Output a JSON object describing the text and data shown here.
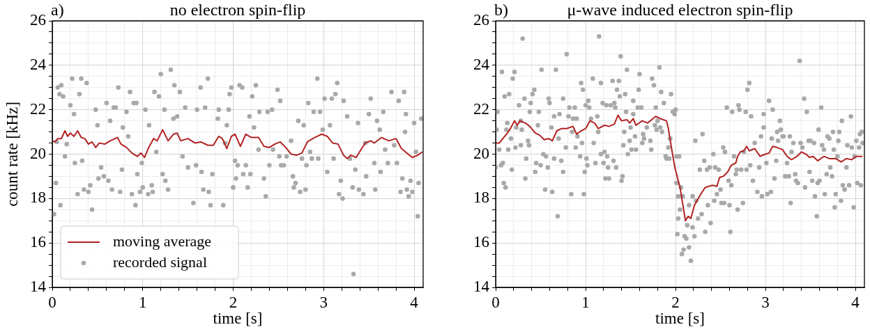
{
  "chart_data": [
    {
      "type": "scatter",
      "title": "no electron spin-flip",
      "annotations": [
        "a)"
      ],
      "xlabel": "time [s]",
      "ylabel": "count rate [kHz]",
      "xlim": [
        0,
        4.1
      ],
      "ylim": [
        14,
        26
      ],
      "xticks": [
        0,
        {
          "value": 0.2,
          "label": null
        },
        {
          "value": 0.4,
          "label": null
        },
        {
          "value": 0.6,
          "label": null
        },
        {
          "value": 0.8,
          "label": null
        },
        1,
        {
          "value": 1.2,
          "label": null
        },
        {
          "value": 1.4,
          "label": null
        },
        {
          "value": 1.6,
          "label": null
        },
        {
          "value": 1.8,
          "label": null
        },
        2,
        {
          "value": 2.2,
          "label": null
        },
        {
          "value": 2.4,
          "label": null
        },
        {
          "value": 2.6,
          "label": null
        },
        {
          "value": 2.8,
          "label": null
        },
        3,
        {
          "value": 3.2,
          "label": null
        },
        {
          "value": 3.4,
          "label": null
        },
        {
          "value": 3.6,
          "label": null
        },
        {
          "value": 3.8,
          "label": null
        },
        4
      ],
      "yticks": [
        14,
        {
          "value": 14.5,
          "label": null
        },
        {
          "value": 15,
          "label": null
        },
        {
          "value": 15.5,
          "label": null
        },
        16,
        {
          "value": 16.5,
          "label": null
        },
        {
          "value": 17,
          "label": null
        },
        {
          "value": 17.5,
          "label": null
        },
        18,
        {
          "value": 18.5,
          "label": null
        },
        {
          "value": 19,
          "label": null
        },
        {
          "value": 19.5,
          "label": null
        },
        20,
        {
          "value": 20.5,
          "label": null
        },
        {
          "value": 21,
          "label": null
        },
        {
          "value": 21.5,
          "label": null
        },
        22,
        {
          "value": 22.5,
          "label": null
        },
        {
          "value": 23,
          "label": null
        },
        {
          "value": 23.5,
          "label": null
        },
        24,
        {
          "value": 24.5,
          "label": null
        },
        {
          "value": 25,
          "label": null
        },
        {
          "value": 25.5,
          "label": null
        },
        26
      ],
      "grid": true,
      "legend": "bottom left",
      "series": [
        {
          "name": "moving average",
          "type": "line",
          "marker": "none",
          "color": "#b22222",
          "x": [
            0,
            0.03,
            0.06,
            0.1,
            0.14,
            0.17,
            0.2,
            0.24,
            0.28,
            0.32,
            0.36,
            0.4,
            0.44,
            0.48,
            0.52,
            0.58,
            0.64,
            0.72,
            0.76,
            0.82,
            0.88,
            0.94,
            0.98,
            1.02,
            1.06,
            1.12,
            1.16,
            1.22,
            1.28,
            1.34,
            1.38,
            1.42,
            1.5,
            1.58,
            1.64,
            1.72,
            1.78,
            1.84,
            1.88,
            1.93,
            1.98,
            2.02,
            2.08,
            2.14,
            2.2,
            2.28,
            2.34,
            2.4,
            2.46,
            2.52,
            2.58,
            2.64,
            2.7,
            2.76,
            2.82,
            2.9,
            2.98,
            3.04,
            3.1,
            3.16,
            3.22,
            3.26,
            3.3,
            3.36,
            3.42,
            3.46,
            3.52,
            3.56,
            3.64,
            3.72,
            3.8,
            3.86,
            3.92,
            3.98,
            4.04,
            4.09
          ],
          "values": [
            20.6,
            20.55,
            20.7,
            20.7,
            21.05,
            20.8,
            20.95,
            20.8,
            21.05,
            20.75,
            20.7,
            20.45,
            20.55,
            20.3,
            20.5,
            20.45,
            20.6,
            20.75,
            20.45,
            20.3,
            20.05,
            19.9,
            20.05,
            19.85,
            20.25,
            20.7,
            20.6,
            21.1,
            20.6,
            20.9,
            20.95,
            20.6,
            20.7,
            20.5,
            20.55,
            20.4,
            20.4,
            20.8,
            20.7,
            20.25,
            20.8,
            20.9,
            20.35,
            20.9,
            20.75,
            20.75,
            20.35,
            20.3,
            20.45,
            20.55,
            20.3,
            20.0,
            19.95,
            20.05,
            20.55,
            20.75,
            20.9,
            20.8,
            20.5,
            20.45,
            19.95,
            19.8,
            19.95,
            19.85,
            20.25,
            20.5,
            20.6,
            20.5,
            20.75,
            20.6,
            20.7,
            20.25,
            20.05,
            19.85,
            19.95,
            20.1
          ]
        },
        {
          "name": "recorded signal",
          "type": "scatter",
          "marker": "circle",
          "color": "#a9a9a9",
          "x": [
            0.02,
            0.04,
            0.05,
            0.06,
            0.08,
            0.09,
            0.1,
            0.12,
            0.14,
            0.16,
            0.2,
            0.22,
            0.24,
            0.25,
            0.28,
            0.3,
            0.32,
            0.33,
            0.35,
            0.38,
            0.4,
            0.42,
            0.44,
            0.48,
            0.5,
            0.51,
            0.54,
            0.57,
            0.6,
            0.62,
            0.64,
            0.66,
            0.68,
            0.7,
            0.73,
            0.75,
            0.77,
            0.78,
            0.82,
            0.84,
            0.86,
            0.88,
            0.9,
            0.92,
            0.93,
            0.94,
            0.97,
            0.99,
            1.0,
            1.03,
            1.06,
            1.07,
            1.1,
            1.11,
            1.13,
            1.15,
            1.18,
            1.2,
            1.22,
            1.24,
            1.25,
            1.28,
            1.31,
            1.34,
            1.35,
            1.38,
            1.41,
            1.44,
            1.47,
            1.5,
            1.56,
            1.59,
            1.6,
            1.64,
            1.65,
            1.67,
            1.69,
            1.72,
            1.73,
            1.75,
            1.77,
            1.83,
            1.84,
            1.89,
            1.91,
            1.93,
            1.95,
            1.96,
            1.98,
            2.0,
            2.02,
            2.03,
            2.05,
            2.07,
            2.1,
            2.11,
            2.14,
            2.16,
            2.18,
            2.19,
            2.21,
            2.23,
            2.25,
            2.28,
            2.29,
            2.34,
            2.36,
            2.38,
            2.4,
            2.43,
            2.44,
            2.49,
            2.51,
            2.52,
            2.53,
            2.56,
            2.59,
            2.64,
            2.66,
            2.67,
            2.69,
            2.72,
            2.74,
            2.76,
            2.78,
            2.8,
            2.81,
            2.83,
            2.85,
            2.87,
            2.89,
            2.93,
            2.94,
            2.96,
            2.99,
            3.01,
            3.04,
            3.07,
            3.09,
            3.11,
            3.13,
            3.15,
            3.17,
            3.19,
            3.21,
            3.22,
            3.26,
            3.29,
            3.32,
            3.33,
            3.35,
            3.38,
            3.39,
            3.44,
            3.46,
            3.47,
            3.5,
            3.52,
            3.56,
            3.57,
            3.59,
            3.62,
            3.63,
            3.66,
            3.68,
            3.71,
            3.75,
            3.78,
            3.81,
            3.83,
            3.85,
            3.87,
            3.89,
            3.9,
            3.91,
            3.92,
            3.94,
            3.96,
            3.98,
            4.0,
            4.02,
            4.04,
            4.05,
            4.08
          ],
          "values": [
            17.3,
            18.7,
            20.55,
            23.0,
            22.7,
            17.7,
            23.1,
            22.6,
            19.9,
            20.45,
            22.2,
            23.4,
            21.8,
            19.6,
            18.2,
            22.7,
            23.4,
            19.7,
            18.4,
            23.2,
            18.3,
            18.6,
            17.5,
            22.0,
            21.3,
            18.9,
            19.4,
            19.0,
            22.3,
            18.8,
            21.5,
            18.4,
            22.1,
            22.1,
            23.0,
            18.3,
            19.3,
            21.2,
            21.9,
            20.8,
            22.8,
            18.2,
            22.3,
            17.7,
            22.3,
            19.1,
            18.3,
            19.6,
            18.5,
            22.0,
            18.2,
            21.3,
            18.6,
            18.3,
            22.8,
            20.1,
            22.6,
            23.6,
            19.1,
            22.0,
            18.8,
            18.4,
            23.8,
            21.6,
            23.1,
            21.7,
            22.8,
            19.9,
            22.1,
            19.4,
            17.8,
            19.5,
            22.0,
            23.0,
            19.2,
            18.4,
            22.1,
            23.4,
            18.3,
            17.7,
            19.1,
            21.6,
            22.0,
            17.7,
            20.5,
            21.3,
            22.0,
            22.7,
            23.0,
            18.5,
            19.7,
            18.9,
            19.5,
            23.1,
            23.0,
            19.1,
            19.5,
            18.5,
            21.7,
            19.1,
            22.6,
            21.2,
            23.1,
            20.2,
            21.9,
            18.9,
            18.1,
            21.9,
            19.5,
            22.0,
            20.2,
            22.9,
            19.9,
            22.4,
            19.5,
            19.5,
            19.9,
            20.6,
            19.0,
            18.5,
            18.7,
            21.5,
            18.3,
            19.8,
            21.3,
            18.4,
            19.5,
            22.3,
            20.1,
            19.8,
            21.9,
            23.4,
            19.8,
            21.9,
            21.1,
            22.5,
            19.2,
            21.3,
            22.5,
            19.8,
            22.7,
            23.2,
            18.2,
            18.8,
            18.0,
            22.4,
            21.7,
            19.8,
            18.5,
            14.6,
            19.3,
            21.4,
            18.4,
            18.2,
            20.5,
            19.0,
            21.8,
            22.5,
            19.6,
            18.4,
            21.5,
            21.1,
            19.2,
            21.9,
            20.2,
            19.6,
            22.8,
            20.4,
            19.6,
            22.4,
            18.3,
            18.9,
            22.8,
            21.0,
            21.8,
            18.4,
            18.1,
            18.8,
            18.3,
            21.4,
            20.1,
            17.2,
            18.7,
            21.6
          ]
        }
      ]
    },
    {
      "type": "scatter",
      "title": "μ-wave induced electron spin-flip",
      "annotations": [
        "b)"
      ],
      "xlabel": "time [s]",
      "xlim": [
        0,
        4.1
      ],
      "ylim": [
        14,
        26
      ],
      "xticks": [
        0,
        {
          "value": 0.2,
          "label": null
        },
        {
          "value": 0.4,
          "label": null
        },
        {
          "value": 0.6,
          "label": null
        },
        {
          "value": 0.8,
          "label": null
        },
        1,
        {
          "value": 1.2,
          "label": null
        },
        {
          "value": 1.4,
          "label": null
        },
        {
          "value": 1.6,
          "label": null
        },
        {
          "value": 1.8,
          "label": null
        },
        2,
        {
          "value": 2.2,
          "label": null
        },
        {
          "value": 2.4,
          "label": null
        },
        {
          "value": 2.6,
          "label": null
        },
        {
          "value": 2.8,
          "label": null
        },
        3,
        {
          "value": 3.2,
          "label": null
        },
        {
          "value": 3.4,
          "label": null
        },
        {
          "value": 3.6,
          "label": null
        },
        {
          "value": 3.8,
          "label": null
        },
        4
      ],
      "yticks": [
        14,
        {
          "value": 14.5,
          "label": null
        },
        {
          "value": 15,
          "label": null
        },
        {
          "value": 15.5,
          "label": null
        },
        16,
        {
          "value": 16.5,
          "label": null
        },
        {
          "value": 17,
          "label": null
        },
        {
          "value": 17.5,
          "label": null
        },
        18,
        {
          "value": 18.5,
          "label": null
        },
        {
          "value": 19,
          "label": null
        },
        {
          "value": 19.5,
          "label": null
        },
        20,
        {
          "value": 20.5,
          "label": null
        },
        {
          "value": 21,
          "label": null
        },
        {
          "value": 21.5,
          "label": null
        },
        22,
        {
          "value": 22.5,
          "label": null
        },
        {
          "value": 23,
          "label": null
        },
        {
          "value": 23.5,
          "label": null
        },
        24,
        {
          "value": 24.5,
          "label": null
        },
        {
          "value": 25,
          "label": null
        },
        {
          "value": 25.5,
          "label": null
        },
        26
      ],
      "grid": true,
      "series": [
        {
          "type": "line",
          "marker": "none",
          "color": "#b22222",
          "x": [
            0,
            0.04,
            0.08,
            0.12,
            0.15,
            0.21,
            0.24,
            0.27,
            0.33,
            0.38,
            0.44,
            0.49,
            0.54,
            0.59,
            0.63,
            0.68,
            0.73,
            0.79,
            0.86,
            0.9,
            0.95,
            1.0,
            1.05,
            1.1,
            1.14,
            1.21,
            1.26,
            1.32,
            1.36,
            1.4,
            1.46,
            1.49,
            1.53,
            1.56,
            1.63,
            1.69,
            1.78,
            1.83,
            1.9,
            1.92,
            1.95,
            1.99,
            2.03,
            2.05,
            2.11,
            2.14,
            2.17,
            2.21,
            2.28,
            2.33,
            2.41,
            2.46,
            2.49,
            2.53,
            2.58,
            2.62,
            2.67,
            2.69,
            2.72,
            2.76,
            2.79,
            2.82,
            2.88,
            2.94,
            3.0,
            3.04,
            3.08,
            3.13,
            3.19,
            3.24,
            3.29,
            3.35,
            3.4,
            3.45,
            3.49,
            3.53,
            3.58,
            3.65,
            3.71,
            3.78,
            3.84,
            3.9,
            3.96,
            4.01,
            4.08
          ],
          "values": [
            20.5,
            20.5,
            20.7,
            20.9,
            21.05,
            21.5,
            21.3,
            21.5,
            21.4,
            21.25,
            20.95,
            20.85,
            20.65,
            20.7,
            20.6,
            21.05,
            21.15,
            21.15,
            21.25,
            20.9,
            21.05,
            21.15,
            21.5,
            21.4,
            21.15,
            21.3,
            21.25,
            21.35,
            21.75,
            21.5,
            21.55,
            21.4,
            21.6,
            21.3,
            21.5,
            21.4,
            21.7,
            21.6,
            21.5,
            21.15,
            20.4,
            19.45,
            18.8,
            18.5,
            17.0,
            17.2,
            17.1,
            17.7,
            18.2,
            18.5,
            18.6,
            18.55,
            18.95,
            19.0,
            19.2,
            19.5,
            19.6,
            19.9,
            20.1,
            20.15,
            20.35,
            20.15,
            20.25,
            19.9,
            20.0,
            20.05,
            20.35,
            20.3,
            20.2,
            19.9,
            19.75,
            19.9,
            20.1,
            20.0,
            19.85,
            19.9,
            19.7,
            19.9,
            19.8,
            19.8,
            19.65,
            19.8,
            19.75,
            19.9,
            19.9
          ]
        },
        {
          "type": "scatter",
          "marker": "circle",
          "color": "#a9a9a9",
          "x": [
            0,
            0.01,
            0.02,
            0.04,
            0.06,
            0.07,
            0.08,
            0.09,
            0.1,
            0.11,
            0.12,
            0.13,
            0.14,
            0.15,
            0.17,
            0.18,
            0.19,
            0.21,
            0.22,
            0.23,
            0.26,
            0.28,
            0.28,
            0.29,
            0.3,
            0.32,
            0.33,
            0.34,
            0.36,
            0.37,
            0.38,
            0.39,
            0.41,
            0.43,
            0.44,
            0.45,
            0.47,
            0.48,
            0.5,
            0.51,
            0.53,
            0.55,
            0.56,
            0.58,
            0.59,
            0.6,
            0.62,
            0.63,
            0.65,
            0.65,
            0.67,
            0.69,
            0.7,
            0.71,
            0.73,
            0.75,
            0.75,
            0.78,
            0.79,
            0.81,
            0.82,
            0.84,
            0.85,
            0.86,
            0.88,
            0.89,
            0.9,
            0.91,
            0.94,
            0.95,
            0.96,
            0.97,
            0.98,
            0.99,
            1.0,
            1.01,
            1.02,
            1.03,
            1.04,
            1.06,
            1.08,
            1.09,
            1.11,
            1.13,
            1.14,
            1.15,
            1.17,
            1.17,
            1.19,
            1.2,
            1.21,
            1.22,
            1.23,
            1.24,
            1.25,
            1.26,
            1.28,
            1.3,
            1.31,
            1.32,
            1.33,
            1.34,
            1.35,
            1.37,
            1.38,
            1.39,
            1.4,
            1.41,
            1.42,
            1.43,
            1.44,
            1.45,
            1.46,
            1.47,
            1.49,
            1.5,
            1.51,
            1.53,
            1.53,
            1.55,
            1.56,
            1.58,
            1.59,
            1.6,
            1.62,
            1.63,
            1.64,
            1.65,
            1.68,
            1.72,
            1.73,
            1.74,
            1.76,
            1.77,
            1.78,
            1.79,
            1.8,
            1.82,
            1.83,
            1.84,
            1.85,
            1.87,
            1.89,
            1.9,
            1.92,
            1.93,
            1.94,
            1.95,
            1.97,
            1.99,
            2.0,
            2.01,
            2.01,
            2.02,
            2.02,
            2.03,
            2.03,
            2.04,
            2.05,
            2.06,
            2.07,
            2.08,
            2.09,
            2.1,
            2.12,
            2.13,
            2.15,
            2.15,
            2.17,
            2.19,
            2.19,
            2.21,
            2.22,
            2.23,
            2.25,
            2.27,
            2.29,
            2.3,
            2.32,
            2.33,
            2.35,
            2.36,
            2.38,
            2.39,
            2.42,
            2.43,
            2.44,
            2.46,
            2.48,
            2.5,
            2.51,
            2.53,
            2.54,
            2.55,
            2.57,
            2.59,
            2.6,
            2.61,
            2.62,
            2.63,
            2.65,
            2.67,
            2.68,
            2.69,
            2.7,
            2.71,
            2.73,
            2.75,
            2.76,
            2.78,
            2.79,
            2.8,
            2.82,
            2.83,
            2.84,
            2.86,
            2.88,
            2.91,
            2.93,
            2.95,
            2.96,
            2.98,
            2.98,
            3.01,
            3.02,
            3.04,
            3.06,
            3.07,
            3.08,
            3.1,
            3.12,
            3.13,
            3.14,
            3.16,
            3.17,
            3.19,
            3.2,
            3.22,
            3.24,
            3.26,
            3.27,
            3.28,
            3.29,
            3.31,
            3.33,
            3.34,
            3.36,
            3.38,
            3.39,
            3.41,
            3.43,
            3.44,
            3.46,
            3.48,
            3.49,
            3.5,
            3.52,
            3.54,
            3.55,
            3.57,
            3.58,
            3.59,
            3.6,
            3.62,
            3.63,
            3.65,
            3.66,
            3.68,
            3.69,
            3.71,
            3.72,
            3.74,
            3.75,
            3.76,
            3.77,
            3.78,
            3.8,
            3.81,
            3.82,
            3.84,
            3.85,
            3.86,
            3.88,
            3.9,
            3.91,
            3.93,
            3.95,
            3.96,
            3.98,
            3.99,
            4.01,
            4.02,
            4.04,
            4.05,
            4.06,
            4.07,
            4.08
          ],
          "values": [
            19.4,
            21.1,
            21.9,
            20.2,
            19.5,
            23.7,
            19.6,
            18.7,
            22.6,
            18.5,
            21.1,
            21.4,
            20.2,
            22.7,
            20.7,
            19.3,
            23.4,
            23.7,
            20.3,
            21.2,
            22.2,
            21.5,
            20.4,
            21.1,
            25.2,
            22.5,
            18.9,
            19.8,
            20.6,
            20.4,
            21.9,
            22.3,
            22.7,
            22.9,
            19.2,
            19.6,
            21.3,
            21.9,
            19.5,
            23.8,
            20.0,
            18.4,
            19.9,
            19.4,
            22.5,
            22.3,
            21.2,
            18.3,
            21.7,
            19.8,
            23.8,
            17.2,
            20.7,
            21.8,
            19.7,
            22.5,
            19.2,
            20.3,
            24.5,
            21.7,
            22.1,
            18.2,
            21.0,
            21.6,
            22.1,
            20.3,
            21.6,
            20.8,
            19.9,
            23.2,
            20.5,
            22.9,
            18.2,
            19.2,
            22.2,
            19.8,
            19.5,
            22.4,
            22.1,
            21.6,
            23.4,
            20.5,
            19.6,
            21.7,
            21.0,
            25.3,
            23.2,
            20.0,
            22.3,
            19.6,
            20.1,
            18.9,
            22.2,
            19.9,
            19.4,
            18.9,
            22.2,
            23.3,
            19.7,
            22.3,
            22.1,
            19.4,
            22.9,
            23.3,
            22.6,
            24.4,
            18.8,
            19.0,
            20.4,
            21.0,
            22.7,
            21.9,
            23.8,
            20.0,
            20.6,
            21.2,
            20.2,
            22.4,
            21.8,
            20.8,
            20.2,
            22.1,
            22.9,
            23.6,
            22.1,
            20.5,
            20.9,
            20.7,
            21.2,
            20.6,
            20.2,
            23.4,
            23.1,
            21.3,
            22.1,
            21.1,
            21.5,
            23.9,
            21.2,
            22.8,
            21.0,
            22.3,
            19.9,
            19.8,
            20.3,
            19.8,
            20.7,
            22.7,
            21.9,
            21.8,
            22.0,
            18.7,
            19.9,
            16.4,
            18.7,
            17.1,
            18.1,
            19.9,
            17.5,
            18.5,
            15.5,
            18.1,
            15.7,
            16.3,
            16.2,
            16.8,
            15.8,
            17.7,
            15.2,
            18.1,
            16.7,
            16.3,
            20.6,
            17.9,
            17.1,
            19.3,
            17.3,
            20.9,
            19.7,
            16.5,
            19.3,
            17.7,
            19.4,
            16.9,
            20.0,
            17.9,
            19.4,
            18.2,
            19.3,
            18.4,
            17.8,
            20.3,
            17.8,
            20.1,
            22.1,
            18.8,
            17.7,
            16.5,
            18.6,
            21.9,
            19.9,
            19.1,
            19.3,
            17.5,
            22.2,
            22.0,
            19.3,
            17.8,
            20.1,
            21.9,
            19.3,
            22.9,
            23.2,
            19.5,
            21.7,
            18.8,
            20.5,
            18.3,
            19.4,
            20.8,
            18.1,
            21.8,
            21.2,
            19.6,
            18.2,
            22.4,
            18.3,
            20.7,
            22.0,
            18.9,
            19.7,
            21.0,
            20.6,
            21.5,
            21.1,
            20.8,
            20.8,
            19.0,
            19.6,
            19.0,
            20.8,
            17.8,
            20.1,
            20.5,
            19.1,
            18.8,
            18.7,
            24.2,
            20.5,
            20.3,
            22.5,
            18.5,
            21.9,
            20.6,
            19.2,
            20.6,
            18.8,
            20.5,
            18.1,
            17.2,
            18.7,
            21.1,
            18.8,
            22.1,
            20.4,
            20.2,
            18.2,
            19.1,
            20.8,
            20.7,
            19.4,
            19.0,
            21.0,
            20.2,
            17.6,
            18.2,
            19.9,
            20.6,
            21.0,
            17.9,
            21.5,
            18.6,
            18.4,
            19.4,
            20.4,
            18.6,
            21.7,
            20.3,
            17.6,
            19.9,
            20.6,
            18.7,
            20.3,
            20.9,
            18.6,
            21.0,
            20.5
          ]
        }
      ]
    }
  ]
}
